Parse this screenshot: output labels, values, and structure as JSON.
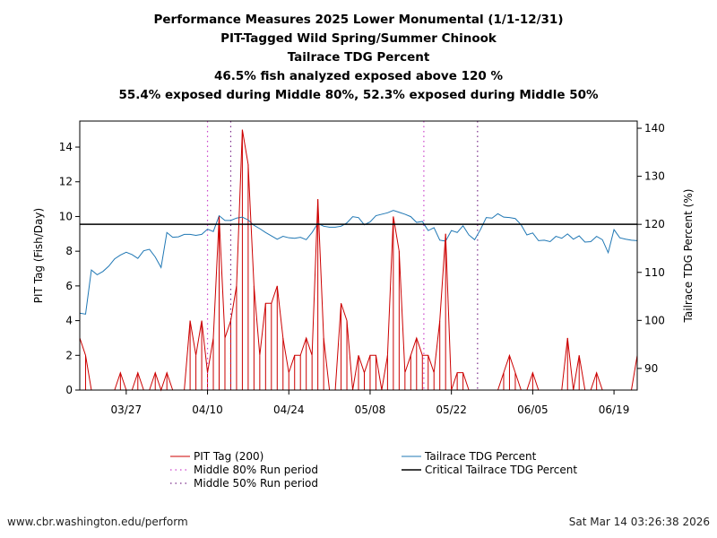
{
  "titles": [
    "Performance Measures 2025 Lower Monumental (1/1-12/31)",
    "PIT-Tagged Wild Spring/Summer Chinook",
    "Tailrace TDG Percent",
    "46.5% fish analyzed exposed above 120 %",
    "55.4% exposed during Middle 80%, 52.3% exposed during Middle 50%"
  ],
  "footer": {
    "source": "www.cbr.washington.edu/perform",
    "timestamp": "Sat Mar 14 03:26:38 2026"
  },
  "chart_data": {
    "type": "line",
    "x_start_day": 77,
    "x_end_day": 173,
    "x_ticks": [
      {
        "day": 85,
        "label": "03/27"
      },
      {
        "day": 99,
        "label": "04/10"
      },
      {
        "day": 113,
        "label": "04/24"
      },
      {
        "day": 127,
        "label": "05/08"
      },
      {
        "day": 141,
        "label": "05/22"
      },
      {
        "day": 155,
        "label": "06/05"
      },
      {
        "day": 169,
        "label": "06/19"
      }
    ],
    "ylabel_left": "PIT Tag (Fish/Day)",
    "ylabel_right": "Tailrace TDG Percent (%)",
    "ylim_left": [
      0,
      15.5
    ],
    "yticks_left": [
      0,
      2,
      4,
      6,
      8,
      10,
      12,
      14
    ],
    "ylim_right": [
      85.5,
      141.5
    ],
    "yticks_right": [
      90,
      100,
      110,
      120,
      130,
      140
    ],
    "critical_tdg": 120,
    "middle80": [
      99,
      136.25
    ],
    "middle50": [
      103,
      145.5
    ],
    "legend": {
      "pit": "PIT Tag (200)",
      "m80": "Middle 80% Run period",
      "m50": "Middle 50% Run period",
      "tdg": "Tailrace TDG Percent",
      "crit": "Critical Tailrace TDG Percent"
    },
    "colors": {
      "pit": "#cc0000",
      "tdg": "#1f77b4",
      "m80": "#cc44cc",
      "m50": "#7b2d8b",
      "crit": "#000000"
    },
    "series": [
      {
        "name": "PIT Tag (200)",
        "axis": "left",
        "x": [
          77,
          78,
          79,
          80,
          81,
          82,
          83,
          84,
          85,
          86,
          87,
          88,
          89,
          90,
          91,
          92,
          93,
          94,
          95,
          96,
          97,
          98,
          99,
          100,
          101,
          102,
          103,
          104,
          105,
          106,
          107,
          108,
          109,
          110,
          111,
          112,
          113,
          114,
          115,
          116,
          117,
          118,
          119,
          120,
          121,
          122,
          123,
          124,
          125,
          126,
          127,
          128,
          129,
          130,
          131,
          132,
          133,
          134,
          135,
          136,
          137,
          138,
          139,
          140,
          141,
          142,
          143,
          144,
          145,
          146,
          147,
          148,
          149,
          150,
          151,
          152,
          153,
          154,
          155,
          156,
          157,
          158,
          159,
          160,
          161,
          162,
          163,
          164,
          165,
          166,
          167,
          168,
          169,
          170,
          171,
          172,
          173
        ],
        "values": [
          3,
          2,
          0,
          0,
          0,
          0,
          0,
          1,
          0,
          0,
          1,
          0,
          0,
          1,
          0,
          1,
          0,
          0,
          0,
          4,
          2,
          4,
          1,
          3,
          10,
          3,
          4,
          6,
          15,
          13,
          6,
          2,
          5,
          5,
          6,
          3,
          1,
          2,
          2,
          3,
          2,
          11,
          3,
          0,
          0,
          5,
          4,
          0,
          2,
          1,
          2,
          2,
          0,
          2,
          10,
          8,
          1,
          2,
          3,
          2,
          2,
          1,
          4,
          9,
          0,
          1,
          1,
          0,
          0,
          0,
          0,
          0,
          0,
          1,
          2,
          1,
          0,
          0,
          1,
          0,
          0,
          0,
          0,
          0,
          3,
          0,
          2,
          0,
          0,
          1,
          0,
          0,
          0,
          0,
          0,
          0,
          2
        ]
      },
      {
        "name": "Tailrace TDG Percent",
        "axis": "right",
        "x": [
          77,
          78,
          79,
          80,
          81,
          82,
          83,
          84,
          85,
          86,
          87,
          88,
          89,
          90,
          91,
          92,
          93,
          94,
          95,
          96,
          97,
          98,
          99,
          100,
          101,
          102,
          103,
          104,
          105,
          106,
          107,
          108,
          109,
          110,
          111,
          112,
          113,
          114,
          115,
          116,
          117,
          118,
          119,
          120,
          121,
          122,
          123,
          124,
          125,
          126,
          127,
          128,
          129,
          130,
          131,
          132,
          133,
          134,
          135,
          136,
          137,
          138,
          139,
          140,
          141,
          142,
          143,
          144,
          145,
          146,
          147,
          148,
          149,
          150,
          151,
          152,
          153,
          154,
          155,
          156,
          157,
          158,
          159,
          160,
          161,
          162,
          163,
          164,
          165,
          166,
          167,
          168,
          169,
          170,
          171,
          172,
          173
        ],
        "values": [
          101.5,
          101.3,
          110.5,
          109.5,
          110.2,
          111.3,
          112.8,
          113.6,
          114.2,
          113.7,
          112.9,
          114.5,
          114.8,
          113.2,
          111.0,
          118.3,
          117.3,
          117.4,
          117.9,
          117.9,
          117.7,
          117.9,
          119.0,
          118.5,
          121.8,
          120.8,
          120.8,
          121.3,
          121.5,
          120.9,
          119.8,
          119.1,
          118.3,
          117.6,
          116.9,
          117.5,
          117.2,
          117.1,
          117.3,
          116.8,
          118.3,
          120.2,
          119.6,
          119.4,
          119.4,
          119.6,
          120.3,
          121.6,
          121.4,
          119.9,
          120.5,
          121.8,
          122.1,
          122.4,
          122.9,
          122.5,
          122.1,
          121.6,
          120.4,
          120.6,
          118.7,
          119.3,
          116.7,
          116.5,
          118.7,
          118.3,
          119.7,
          117.8,
          116.8,
          118.9,
          121.4,
          121.3,
          122.2,
          121.5,
          121.4,
          121.2,
          119.9,
          117.8,
          118.2,
          116.6,
          116.7,
          116.4,
          117.5,
          117.1,
          118.0,
          116.9,
          117.6,
          116.3,
          116.4,
          117.5,
          116.8,
          114.1,
          118.9,
          117.2,
          116.9,
          116.7,
          116.6
        ]
      }
    ]
  }
}
